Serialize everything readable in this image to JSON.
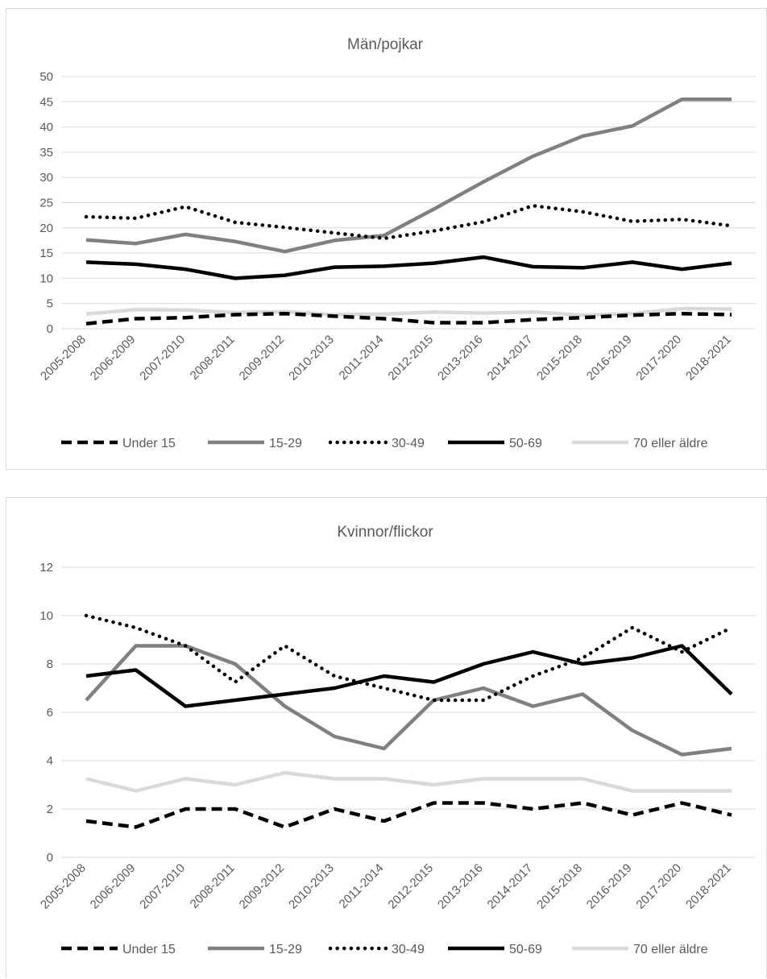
{
  "chart_data": [
    {
      "type": "line",
      "title": "Män/pojkar",
      "categories": [
        "2005-2008",
        "2006-2009",
        "2007-2010",
        "2008-2011",
        "2009-2012",
        "2010-2013",
        "2011-2014",
        "2012-2015",
        "2013-2016",
        "2014-2017",
        "2015-2018",
        "2016-2019",
        "2017-2020",
        "2018-2021"
      ],
      "ylim": [
        0,
        50
      ],
      "yticks": [
        0,
        5,
        10,
        15,
        20,
        25,
        30,
        35,
        40,
        45,
        50
      ],
      "grid": true,
      "legend_position": "bottom",
      "series": [
        {
          "name": "Under 15",
          "style": "dashed",
          "color": "#000000",
          "values": [
            1.0,
            2.0,
            2.2,
            2.8,
            3.0,
            2.5,
            2.0,
            1.2,
            1.2,
            1.8,
            2.2,
            2.7,
            3.0,
            2.8
          ]
        },
        {
          "name": "15-29",
          "style": "solid",
          "color": "#808080",
          "values": [
            17.6,
            16.9,
            18.7,
            17.3,
            15.3,
            17.5,
            18.5,
            23.7,
            29.1,
            34.2,
            38.2,
            40.2,
            45.5,
            45.5
          ]
        },
        {
          "name": "30-49",
          "style": "dotted",
          "color": "#000000",
          "values": [
            22.2,
            21.9,
            24.2,
            21.1,
            20.1,
            19.0,
            17.9,
            19.4,
            21.2,
            24.4,
            23.2,
            21.3,
            21.7,
            20.4
          ]
        },
        {
          "name": "50-69",
          "style": "solid",
          "color": "#000000",
          "values": [
            13.2,
            12.8,
            11.8,
            10.0,
            10.6,
            12.2,
            12.4,
            13.0,
            14.2,
            12.3,
            12.1,
            13.2,
            11.8,
            13.0
          ]
        },
        {
          "name": "70 eller äldre",
          "style": "solid",
          "color": "#d9d9d9",
          "values": [
            2.9,
            3.8,
            3.7,
            3.2,
            3.4,
            2.8,
            2.9,
            3.3,
            3.1,
            3.3,
            2.7,
            3.0,
            4.0,
            3.9
          ]
        }
      ]
    },
    {
      "type": "line",
      "title": "Kvinnor/flickor",
      "categories": [
        "2005-2008",
        "2006-2009",
        "2007-2010",
        "2008-2011",
        "2009-2012",
        "2010-2013",
        "2011-2014",
        "2012-2015",
        "2013-2016",
        "2014-2017",
        "2015-2018",
        "2016-2019",
        "2017-2020",
        "2018-2021"
      ],
      "ylim": [
        0,
        12
      ],
      "yticks": [
        0,
        2,
        4,
        6,
        8,
        10,
        12
      ],
      "grid": true,
      "legend_position": "bottom",
      "series": [
        {
          "name": "Under 15",
          "style": "dashed",
          "color": "#000000",
          "values": [
            1.5,
            1.25,
            2.0,
            2.0,
            1.25,
            2.0,
            1.5,
            2.25,
            2.25,
            2.0,
            2.25,
            1.75,
            2.25,
            1.75
          ]
        },
        {
          "name": "15-29",
          "style": "solid",
          "color": "#808080",
          "values": [
            6.5,
            8.75,
            8.75,
            8.0,
            6.25,
            5.0,
            4.5,
            6.5,
            7.0,
            6.25,
            6.75,
            5.25,
            4.25,
            4.5
          ]
        },
        {
          "name": "30-49",
          "style": "dotted",
          "color": "#000000",
          "values": [
            10.0,
            9.5,
            8.75,
            7.25,
            8.75,
            7.5,
            7.0,
            6.5,
            6.5,
            7.5,
            8.25,
            9.5,
            8.5,
            9.5
          ]
        },
        {
          "name": "50-69",
          "style": "solid",
          "color": "#000000",
          "values": [
            7.5,
            7.75,
            6.25,
            6.5,
            6.75,
            7.0,
            7.5,
            7.25,
            8.0,
            8.5,
            8.0,
            8.25,
            8.75,
            6.75
          ]
        },
        {
          "name": "70 eller äldre",
          "style": "solid",
          "color": "#d9d9d9",
          "values": [
            3.25,
            2.75,
            3.25,
            3.0,
            3.5,
            3.25,
            3.25,
            3.0,
            3.25,
            3.25,
            3.25,
            2.75,
            2.75,
            2.75
          ]
        }
      ]
    }
  ]
}
